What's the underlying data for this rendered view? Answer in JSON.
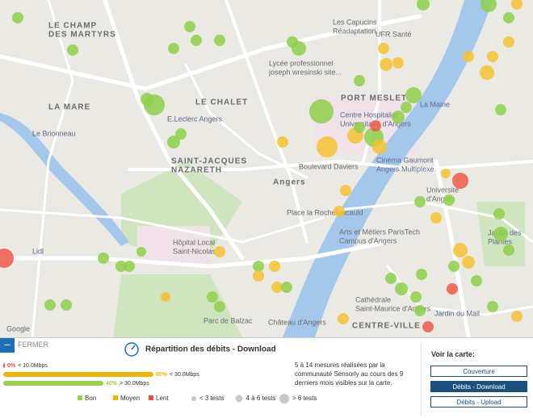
{
  "map": {
    "labels": [
      {
        "lines": [
          "LE CHAMP",
          "DES MARTYRS"
        ]
      },
      {
        "lines": [
          "LA MARE"
        ]
      },
      {
        "lines": [
          "LE CHALET"
        ]
      },
      {
        "lines": [
          "E.Leclerc Angers"
        ]
      },
      {
        "lines": [
          "SAINT-JACQUES",
          "NAZARETH"
        ]
      },
      {
        "lines": [
          "Lycée professionnel",
          "joseph wresinski site..."
        ]
      },
      {
        "lines": [
          "Les Capucins",
          "Réadaptation..."
        ]
      },
      {
        "lines": [
          "UFR Santé"
        ]
      },
      {
        "lines": [
          "PORT MESLET"
        ]
      },
      {
        "lines": [
          "Centre Hospitalier",
          "Universitaire d'Angers"
        ]
      },
      {
        "lines": [
          "Cinéma Gaumont",
          "Angers Multiplexe"
        ]
      },
      {
        "lines": [
          "Boulevard Daviers"
        ]
      },
      {
        "lines": [
          "Angers"
        ]
      },
      {
        "lines": [
          "Place la Rochefoucauld"
        ]
      },
      {
        "lines": [
          "Arts et Métiers ParisTech",
          "Campus d'Angers"
        ]
      },
      {
        "lines": [
          "Université",
          "d'Angers"
        ]
      },
      {
        "lines": [
          "Hôpital Local",
          "Saint-Nicolas"
        ]
      },
      {
        "lines": [
          "Lidl"
        ]
      },
      {
        "lines": [
          "Parc de Balzac"
        ]
      },
      {
        "lines": [
          "Château d'Angers"
        ]
      },
      {
        "lines": [
          "Cathédrale",
          "Saint-Maurice d'Angers"
        ]
      },
      {
        "lines": [
          "CENTRE-VILLE"
        ]
      },
      {
        "lines": [
          "Jardin des",
          "Plantes"
        ]
      },
      {
        "lines": [
          "Jardin du Mail"
        ]
      },
      {
        "lines": [
          "Le Brionneau"
        ]
      },
      {
        "lines": [
          "La Maine"
        ]
      },
      {
        "lines": [
          "Google"
        ]
      }
    ]
  },
  "panel": {
    "close": "FERMER",
    "title": "Répartition des débits - Download",
    "distribution": [
      {
        "value": 0,
        "label": "0%",
        "threshold": "< 10.0Mbps",
        "color": "#e74c3c"
      },
      {
        "value": 60,
        "label": "60%",
        "threshold": "< 30.0Mbps",
        "color": "#f0b400"
      },
      {
        "value": 40,
        "label": "40%",
        "threshold": "> 30.0Mbps",
        "color": "#9ccf4f"
      }
    ],
    "legend_quality": [
      {
        "name": "Bon",
        "color": "#9ccf4f"
      },
      {
        "name": "Moyen",
        "color": "#f0b400"
      },
      {
        "name": "Lent",
        "color": "#e74c3c"
      }
    ],
    "legend_size": [
      "< 3 tests",
      "4 à 6 tests",
      "> 6 tests"
    ],
    "description": [
      "5 à 14 mesures réalisées par la",
      "communauté Sensorly au cours des 9",
      "derniers mois visibles sur la carte."
    ],
    "view": {
      "title": "Voir la carte:",
      "buttons": [
        "Couverture",
        "Débits - Download",
        "Débits - Upload"
      ],
      "active": 1
    }
  }
}
